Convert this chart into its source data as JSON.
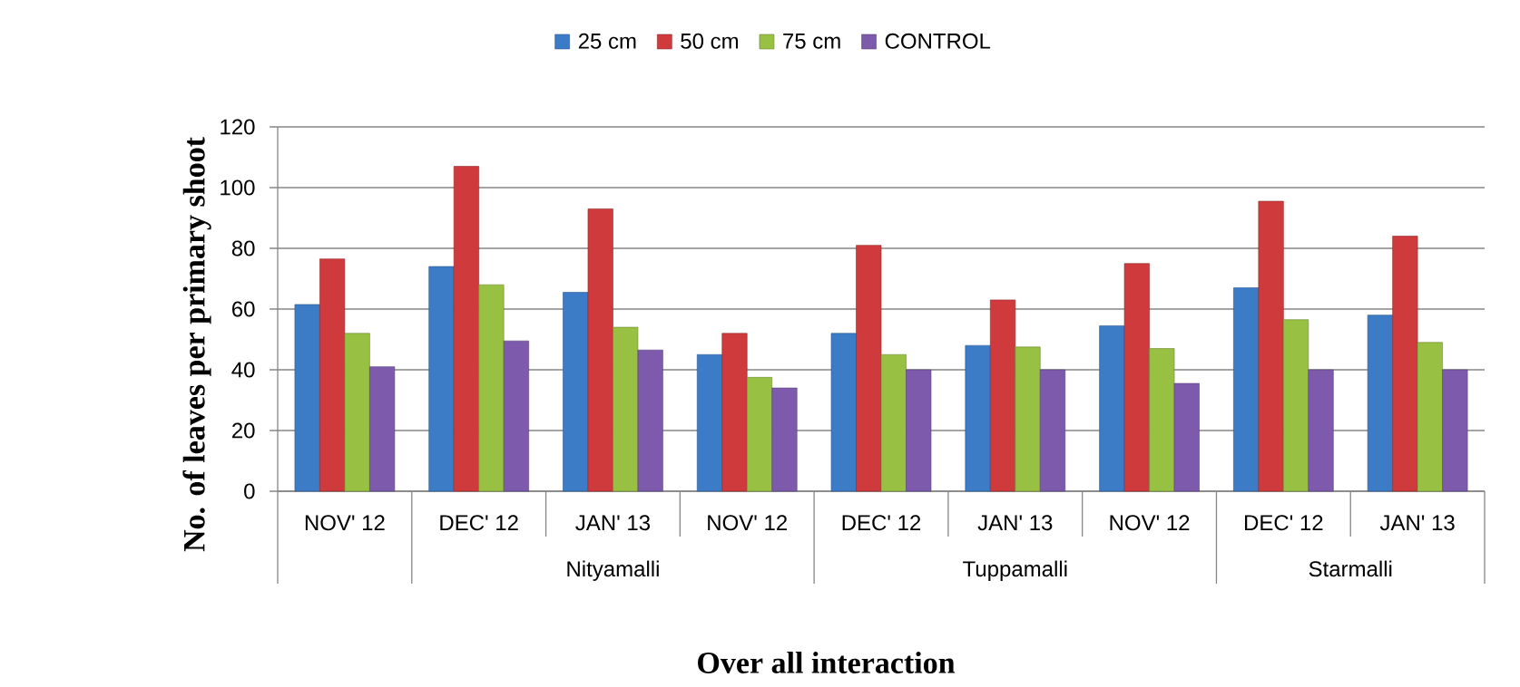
{
  "chart_data": {
    "type": "bar",
    "xlabel": "Over all interaction",
    "ylabel": "No. of leaves per primary shoot",
    "categories": [
      "NOV' 12",
      "DEC' 12",
      "JAN' 13",
      "NOV' 12",
      "DEC' 12",
      "JAN' 13",
      "NOV' 12",
      "DEC' 12",
      "JAN' 13"
    ],
    "series": [
      {
        "name": "25 cm",
        "color": "#3c7bc6",
        "values": [
          61.5,
          74,
          65.5,
          45,
          52,
          48,
          54.5,
          67,
          58
        ]
      },
      {
        "name": "50 cm",
        "color": "#cf3a3c",
        "values": [
          76.5,
          107,
          93,
          52,
          81,
          63,
          75,
          95.5,
          84
        ]
      },
      {
        "name": "75 cm",
        "color": "#98c043",
        "values": [
          52,
          68,
          54,
          37.5,
          45,
          47.5,
          47,
          56.5,
          49
        ]
      },
      {
        "name": "CONTROL",
        "color": "#7d5aab",
        "values": [
          41,
          49.5,
          46.5,
          34,
          40,
          40,
          35.5,
          40,
          40
        ]
      }
    ],
    "ylim": [
      0,
      120
    ],
    "yticks": [
      0,
      20,
      40,
      60,
      80,
      100,
      120
    ],
    "grid": "y",
    "legend": "top",
    "annotations": [
      "Nityamalli",
      "Tuppamalli",
      "Starmalli"
    ]
  }
}
